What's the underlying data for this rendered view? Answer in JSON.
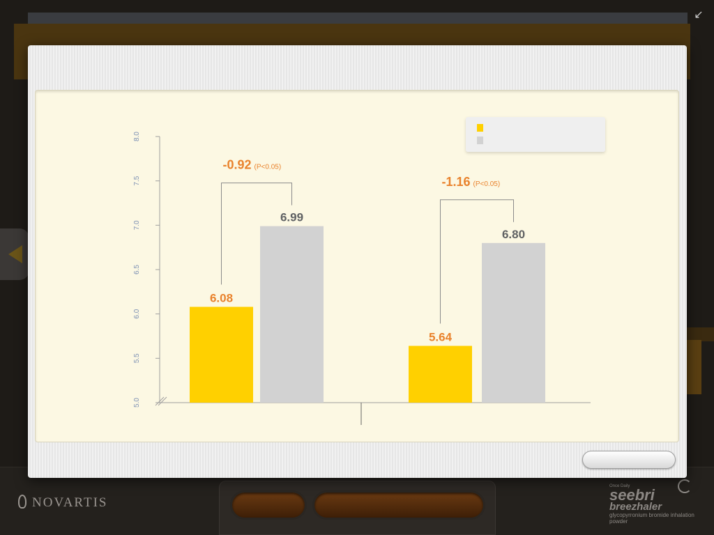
{
  "icons": {
    "collapse": "collapse-arrows-icon",
    "prev": "left-arrow-icon"
  },
  "footer": {
    "logo_text": "NOVARTIS",
    "brand_small": "Once Daily",
    "brand_name": "seebri",
    "brand_sub": "breezhaler",
    "brand_desc": "glycopyrronium bromide inhalation powder"
  },
  "modal": {
    "close_label": ""
  },
  "colors": {
    "series_a": "#ffd000",
    "series_b": "#d2d2d2",
    "label_a": "#e9822c",
    "label_b": "#5f6163",
    "axis": "#9e9e9e",
    "tick_text": "#7b8fb3"
  },
  "chart_data": {
    "type": "bar",
    "categories": [
      "",
      ""
    ],
    "series": [
      {
        "values": [
          6.08,
          5.64
        ]
      },
      {
        "values": [
          6.99,
          6.8
        ]
      }
    ],
    "value_labels": [
      [
        "6.08",
        "5.64"
      ],
      [
        "6.99",
        "6.80"
      ]
    ],
    "differences": [
      {
        "value": "-0.92",
        "p": "(P<0.05)"
      },
      {
        "value": "-1.16",
        "p": "(P<0.05)"
      }
    ],
    "yticks": [
      "5.0",
      "5.5",
      "6.0",
      "6.5",
      "7.0",
      "7.5",
      "8.0"
    ],
    "ylim": [
      5.0,
      8.0
    ],
    "axis_break": true,
    "legend": {
      "placement": "top-right",
      "entries": [
        "",
        ""
      ]
    },
    "title": "",
    "xlabel": "",
    "ylabel": ""
  }
}
